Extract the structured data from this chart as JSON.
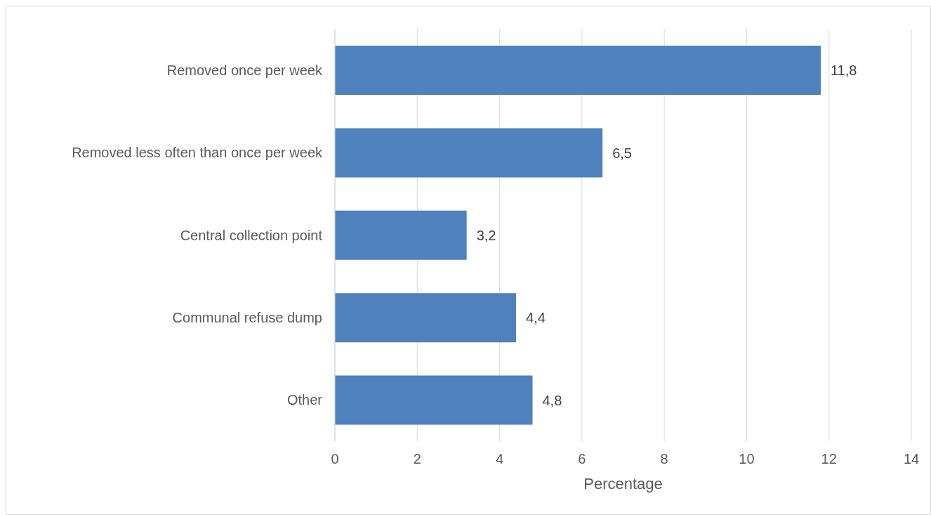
{
  "chart_data": {
    "type": "bar",
    "orientation": "horizontal",
    "xlabel": "Percentage",
    "categories": [
      "Removed once per week",
      "Removed less often than once per week",
      "Central collection point",
      "Communal refuse dump",
      "Other"
    ],
    "values": [
      11.8,
      6.5,
      3.2,
      4.4,
      4.8
    ],
    "value_labels": [
      "11,8",
      "6,5",
      "3,2",
      "4,4",
      "4,8"
    ],
    "color": "#4f81bd",
    "xlim": [
      0,
      14
    ],
    "xticks": [
      0,
      2,
      4,
      6,
      8,
      10,
      12,
      14
    ],
    "grid": "x"
  }
}
